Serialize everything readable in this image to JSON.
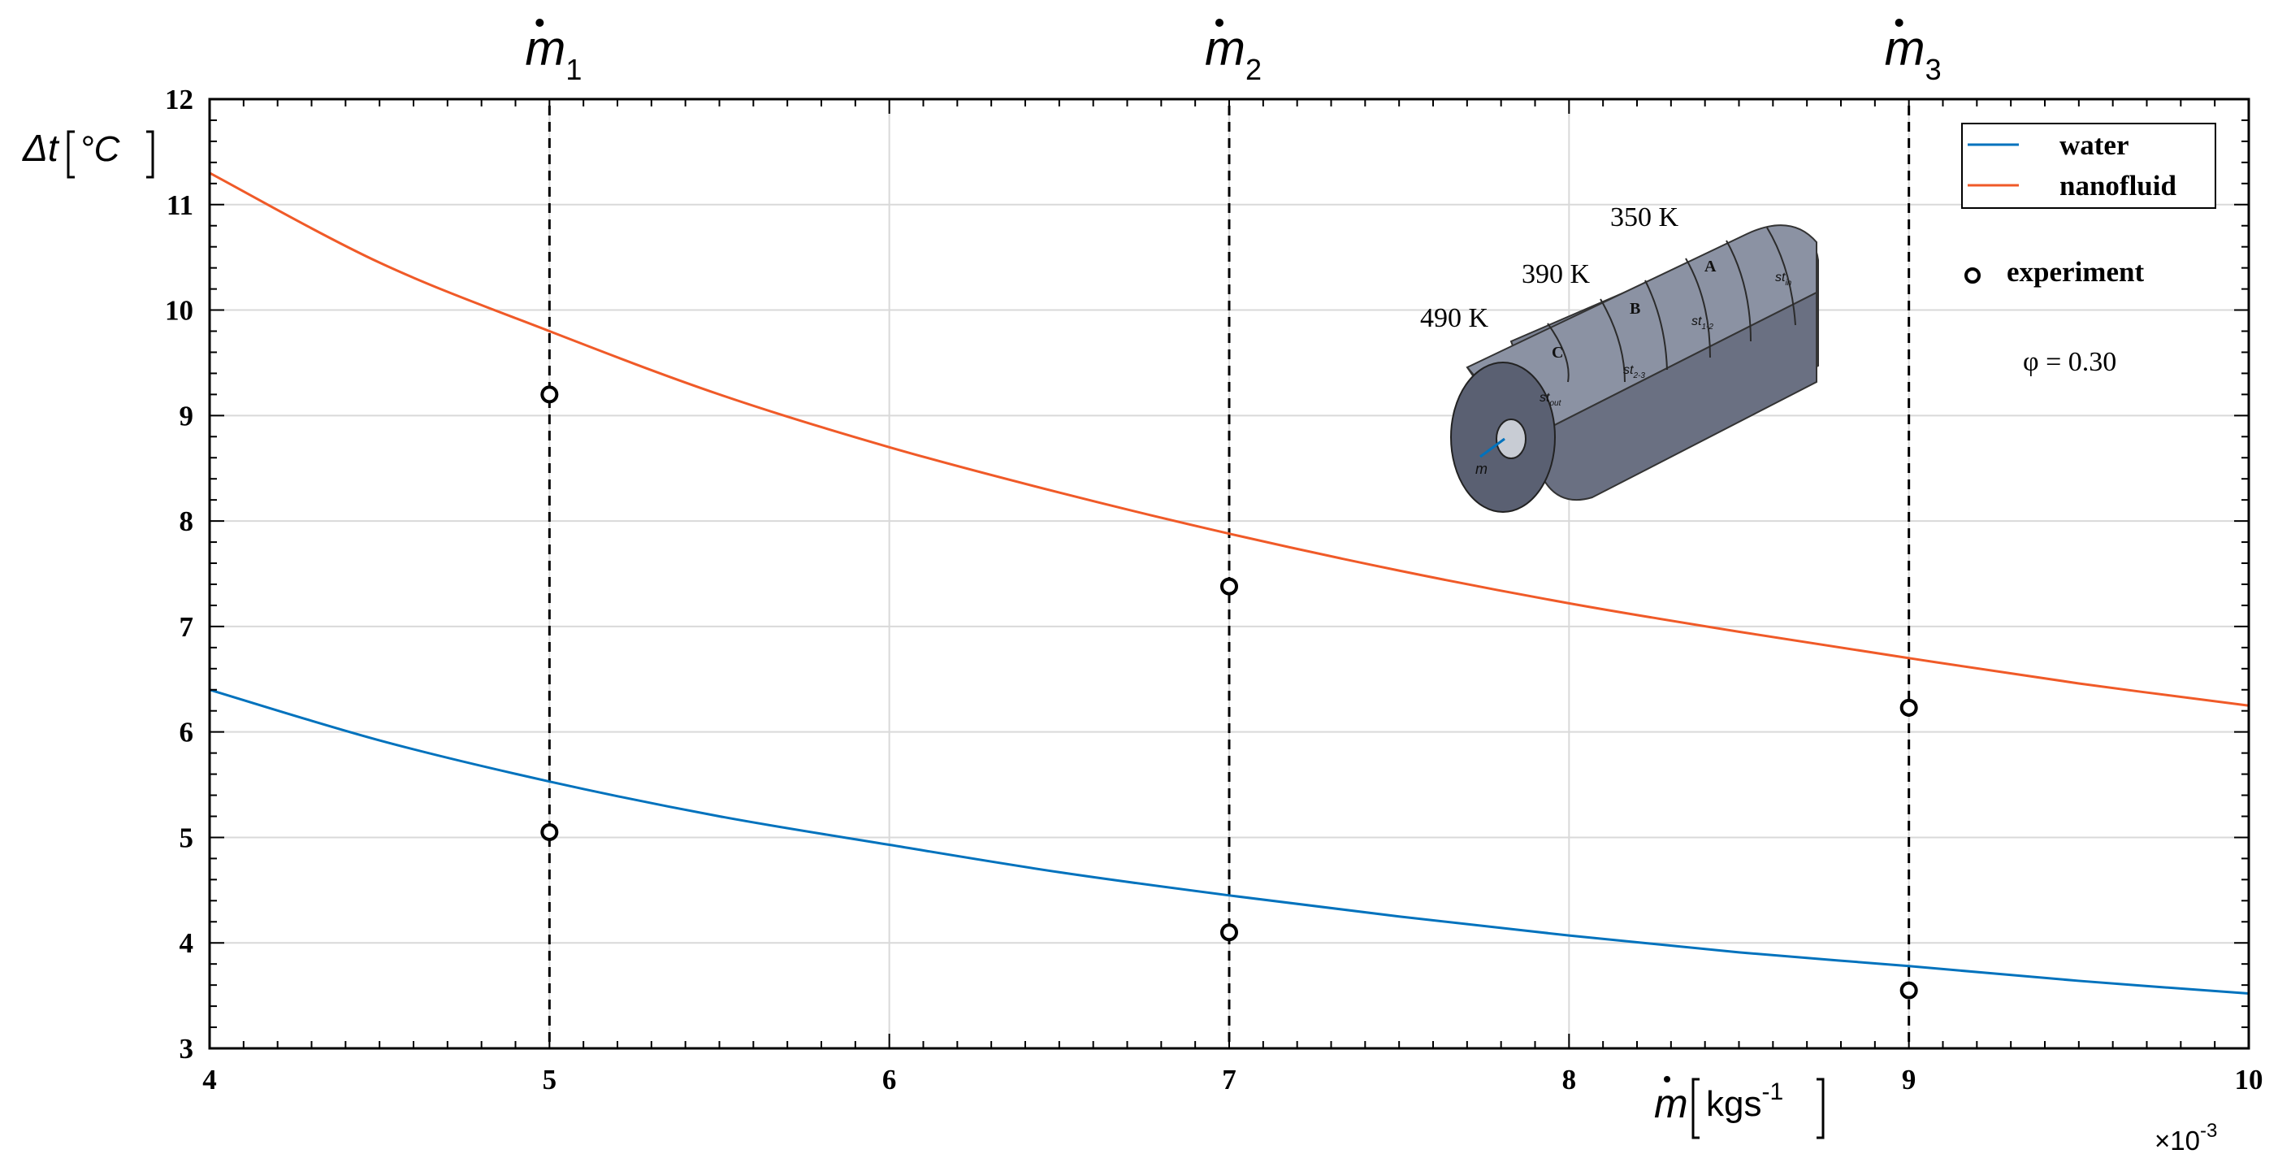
{
  "colors": {
    "water": "#0072BD",
    "nanofluid": "#F05A28",
    "grid": "#d9d9d9",
    "inset_body": "#7c8394"
  },
  "chart_data": {
    "type": "line",
    "xlim": [
      4,
      10
    ],
    "ylim": [
      3,
      12
    ],
    "x_ticks": [
      "4",
      "5",
      "6",
      "7",
      "8",
      "9",
      "10"
    ],
    "y_ticks": [
      "3",
      "4",
      "5",
      "6",
      "7",
      "8",
      "9",
      "10",
      "11",
      "12"
    ],
    "x_multiplier": "×10",
    "x_multiplier_exp": "-3",
    "ylabel": "Δt",
    "ylabel_unit": "°C",
    "xlabel_unit": "kgs",
    "xlabel_unit_exp": "-1",
    "grid": true,
    "legend_position": "top-right",
    "series": [
      {
        "name": "water",
        "color": "#0072BD",
        "x": [
          4,
          4.5,
          5,
          5.5,
          6,
          6.5,
          7,
          7.5,
          8,
          8.5,
          9,
          9.5,
          10
        ],
        "y": [
          6.4,
          5.92,
          5.53,
          5.2,
          4.93,
          4.67,
          4.45,
          4.25,
          4.07,
          3.91,
          3.78,
          3.64,
          3.52
        ]
      },
      {
        "name": "nanofluid",
        "color": "#F05A28",
        "x": [
          4,
          4.5,
          5,
          5.5,
          6,
          6.5,
          7,
          7.5,
          8,
          8.5,
          9,
          9.5,
          10
        ],
        "y": [
          11.3,
          10.45,
          9.8,
          9.2,
          8.7,
          8.27,
          7.88,
          7.53,
          7.22,
          6.95,
          6.7,
          6.46,
          6.25
        ]
      }
    ],
    "experiment": {
      "name": "experiment",
      "x": [
        5,
        5,
        7,
        7,
        9,
        9
      ],
      "y": [
        9.2,
        5.05,
        7.38,
        4.1,
        6.23,
        3.55
      ]
    },
    "vertical_lines": [
      {
        "x": 5,
        "label": "m",
        "sub": "1"
      },
      {
        "x": 7,
        "label": "m",
        "sub": "2"
      },
      {
        "x": 9,
        "label": "m",
        "sub": "3"
      }
    ],
    "annotation": "φ = 0.30",
    "inset": {
      "labels_temp": [
        "350 K",
        "390 K",
        "490 K"
      ],
      "section_labels": [
        "A",
        "B",
        "C"
      ],
      "st_labels": [
        "st",
        "st",
        "st",
        "st"
      ],
      "st_subs": [
        "in",
        "1-2",
        "2-3",
        "out"
      ],
      "flow_label": "m"
    }
  }
}
